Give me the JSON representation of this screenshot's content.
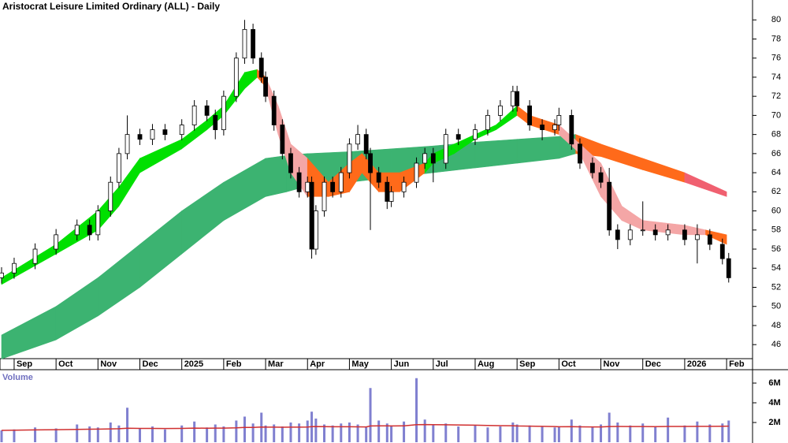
{
  "chart_data": {
    "type": "candlestick",
    "title": "Aristocrat Leisure Limited Ordinary (ALL) - Daily",
    "xlim": [
      -0.3,
      17.6
    ],
    "xticks": [
      {
        "value": 0,
        "label": "Sep"
      },
      {
        "value": 1,
        "label": "Oct"
      },
      {
        "value": 2,
        "label": "Nov"
      },
      {
        "value": 3,
        "label": "Dec"
      },
      {
        "value": 4,
        "label": "2025"
      },
      {
        "value": 5,
        "label": "Feb"
      },
      {
        "value": 6,
        "label": "Mar"
      },
      {
        "value": 7,
        "label": "Apr"
      },
      {
        "value": 8,
        "label": "May"
      },
      {
        "value": 9,
        "label": "Jun"
      },
      {
        "value": 10,
        "label": "Jul"
      },
      {
        "value": 11,
        "label": "Aug"
      },
      {
        "value": 12,
        "label": "Sep"
      },
      {
        "value": 13,
        "label": "Oct"
      },
      {
        "value": 14,
        "label": "Nov"
      },
      {
        "value": 15,
        "label": "Dec"
      },
      {
        "value": 16,
        "label": "2026"
      },
      {
        "value": 17,
        "label": "Feb"
      }
    ],
    "ylim": [
      44.2,
      82
    ],
    "yticks": [
      46,
      48,
      50,
      52,
      54,
      56,
      58,
      60,
      62,
      64,
      66,
      68,
      70,
      72,
      74,
      76,
      78,
      80
    ],
    "up_color": "#ffffff",
    "down_color": "#000000",
    "candles": {
      "x": [
        -0.3,
        0,
        0.5,
        1,
        1.5,
        1.8,
        2,
        2.3,
        2.5,
        2.7,
        3,
        3.3,
        3.6,
        4,
        4.3,
        4.6,
        4.8,
        5,
        5.3,
        5.5,
        5.7,
        5.9,
        6,
        6.2,
        6.4,
        6.6,
        6.8,
        7,
        7.1,
        7.2,
        7.4,
        7.6,
        7.8,
        8,
        8.2,
        8.4,
        8.5,
        8.7,
        8.9,
        9,
        9.3,
        9.6,
        9.8,
        10,
        10.3,
        10.6,
        11,
        11.3,
        11.6,
        11.9,
        12,
        12.3,
        12.6,
        12.9,
        13,
        13.3,
        13.5,
        13.8,
        14,
        14.2,
        14.4,
        14.7,
        15,
        15.3,
        15.6,
        16,
        16.3,
        16.6,
        16.9,
        17.05
      ],
      "open": [
        53,
        53.5,
        54.5,
        56,
        57.5,
        58.5,
        57.5,
        60,
        63,
        66,
        68,
        67.5,
        68.5,
        68,
        69,
        71,
        70,
        68.5,
        72,
        76,
        79,
        76,
        74,
        72,
        69,
        66,
        64,
        62,
        63,
        56,
        60,
        63,
        62,
        64,
        67,
        68,
        66,
        64,
        63,
        61,
        62,
        63,
        65,
        66,
        65,
        68,
        67.5,
        68.5,
        70,
        71,
        72.5,
        71,
        69,
        68.5,
        69,
        70,
        67,
        65,
        64,
        63,
        58,
        57,
        58,
        58,
        57.5,
        58,
        57,
        57.5,
        56.5,
        55
      ],
      "high": [
        54.1,
        55.1,
        56.6,
        58.1,
        59.1,
        59.1,
        60.6,
        63.6,
        66.6,
        70,
        68.6,
        69.1,
        69.1,
        69.6,
        71.6,
        71.6,
        70.6,
        72.6,
        76.6,
        80,
        79.6,
        76.6,
        74.6,
        72.6,
        69.6,
        66.6,
        64.6,
        63.6,
        63.6,
        60.6,
        63.6,
        63.6,
        64.6,
        67.6,
        69,
        68.6,
        66.6,
        64.6,
        63.6,
        62.6,
        63.6,
        65.6,
        66.6,
        66.6,
        68.6,
        68.6,
        69.1,
        70.6,
        71.6,
        73.1,
        73.1,
        71.6,
        69.6,
        69.6,
        70.8,
        70.6,
        67.6,
        65.6,
        64.6,
        64.5,
        58.6,
        58.6,
        61,
        58.6,
        58.6,
        58.6,
        58.6,
        58.1,
        57.1,
        55.6
      ],
      "low": [
        52.4,
        52.9,
        53.9,
        55.4,
        56.9,
        56.9,
        56.9,
        59.4,
        62.4,
        65.4,
        66.9,
        66.9,
        67.4,
        67.4,
        68.4,
        69.4,
        67.5,
        67.9,
        71.4,
        75.4,
        75.4,
        73.4,
        71.4,
        68.4,
        65.4,
        63.4,
        61.4,
        61.4,
        55,
        55.4,
        59.4,
        61.4,
        61.4,
        63.4,
        66.4,
        65.4,
        58,
        62.4,
        60.2,
        60.4,
        61.4,
        62.4,
        64.4,
        63,
        64.4,
        66.9,
        66.9,
        67.9,
        69.4,
        70.4,
        70.4,
        68.4,
        67.4,
        67.9,
        68.4,
        66.4,
        64.4,
        63.4,
        62.4,
        57.4,
        56,
        56.4,
        57.4,
        56.9,
        56.9,
        56.4,
        54.5,
        55.9,
        54.4,
        52.5
      ],
      "close": [
        53.5,
        54.5,
        56,
        57.5,
        58.5,
        57.5,
        60,
        63,
        66,
        68,
        67.5,
        68.5,
        68,
        69,
        71,
        70,
        68.5,
        72,
        76,
        79,
        76,
        74,
        72,
        69,
        66,
        64,
        62,
        63,
        56,
        60,
        63,
        62,
        64,
        67,
        68,
        66,
        64,
        63,
        61,
        62,
        63,
        65,
        66,
        65,
        68,
        67.5,
        68.5,
        70,
        71,
        72.5,
        71,
        69,
        68.5,
        69,
        70,
        67,
        65,
        64,
        63,
        58,
        57,
        58,
        58,
        57.5,
        58,
        57,
        57.5,
        56.5,
        55,
        53
      ]
    },
    "ribbons": [
      {
        "x": [
          -0.3,
          1,
          2,
          3,
          4,
          5,
          6,
          6.5,
          7,
          8,
          9,
          10,
          11,
          12,
          13,
          13.4,
          14,
          15,
          16,
          17
        ],
        "upper": [
          47,
          50,
          53,
          56.5,
          60,
          63,
          65.5,
          65.8,
          66,
          66.2,
          66.5,
          66.8,
          67.2,
          67.5,
          67.8,
          68,
          67,
          65.5,
          64,
          62
        ],
        "lower": [
          44.5,
          46.5,
          49,
          52,
          55.5,
          59,
          61.5,
          62,
          62.6,
          63,
          63.5,
          64,
          64.5,
          65,
          65.5,
          66,
          65.7,
          64.3,
          63,
          61.5
        ],
        "segment_colors": [
          "#3cb371",
          "#3cb371",
          "#3cb371",
          "#3cb371",
          "#3cb371",
          "#3cb371",
          "#3cb371",
          "#3cb371",
          "#3cb371",
          "#3cb371",
          "#3cb371",
          "#3cb371",
          "#3cb371",
          "#3cb371",
          "#3cb371",
          "#ff6a1a",
          "#ff6a1a",
          "#ff6a1a",
          "#f06070"
        ]
      },
      {
        "x": [
          -0.3,
          1,
          2,
          2.5,
          3,
          4,
          4.6,
          5,
          5.5,
          5.8,
          6,
          6.3,
          6.6,
          7,
          7.5,
          8,
          8.3,
          8.7,
          9.2,
          9.8,
          10,
          10.5,
          11,
          11.5,
          12,
          12.3,
          13,
          13.5,
          14,
          14.5,
          15,
          16,
          16.5,
          17
        ],
        "upper": [
          53,
          56.5,
          60,
          62.5,
          65.5,
          67.5,
          69.5,
          71,
          74.5,
          74.8,
          74,
          71,
          67,
          65.5,
          63,
          65,
          66,
          64,
          64,
          65,
          66,
          67,
          68,
          69,
          71,
          70,
          69,
          67,
          65,
          60.5,
          59,
          58.5,
          58,
          57.5
        ],
        "lower": [
          52.3,
          55.5,
          58,
          60.5,
          64,
          66.5,
          68.5,
          70,
          72.8,
          74,
          73,
          68,
          64,
          61.5,
          61.5,
          62,
          64,
          62,
          62,
          64,
          65,
          66,
          67.5,
          68.5,
          70,
          69,
          68,
          66,
          61.5,
          59,
          58,
          57.5,
          57.5,
          56.5
        ],
        "segment_colors": [
          "#00e000",
          "#00e000",
          "#00e000",
          "#00e000",
          "#00e000",
          "#00e000",
          "#00e000",
          "#00e000",
          "#00e000",
          "#ff6a1a",
          "#f4a6a6",
          "#f4a6a6",
          "#f4a6a6",
          "#ff6a1a",
          "#ff6a1a",
          "#ff6a1a",
          "#ff6a1a",
          "#ff6a1a",
          "#ff6a1a",
          "#00e000",
          "#00e000",
          "#00e000",
          "#00e000",
          "#00e000",
          "#ff6a1a",
          "#ff6a1a",
          "#f4a6a6",
          "#f4a6a6",
          "#f4a6a6",
          "#f4a6a6",
          "#f4a6a6",
          "#f4a6a6",
          "#ff6a1a"
        ]
      }
    ],
    "volume": {
      "label": "Volume",
      "ylim": [
        0,
        7000000
      ],
      "yticks": [
        {
          "value": 2000000,
          "label": "2M"
        },
        {
          "value": 4000000,
          "label": "4M"
        },
        {
          "value": 6000000,
          "label": "6M"
        }
      ],
      "color": "#8080d0",
      "ma_color": "#d03030",
      "values": [
        1200000,
        1300000,
        1500000,
        1400000,
        1800000,
        1600000,
        1500000,
        2000000,
        1700000,
        3500000,
        1400000,
        1600000,
        1300000,
        1700000,
        2100000,
        1500000,
        1800000,
        1600000,
        2200000,
        2600000,
        1900000,
        3000000,
        1700000,
        1800000,
        1600000,
        2000000,
        1900000,
        2200000,
        3100000,
        2400000,
        1800000,
        1700000,
        1900000,
        2000000,
        1800000,
        1600000,
        5500000,
        2200000,
        1900000,
        1700000,
        2100000,
        6500000,
        2300000,
        1800000,
        1900000,
        1600000,
        1700000,
        1500000,
        1600000,
        2000000,
        1800000,
        1700000,
        1600000,
        1500000,
        1600000,
        2300000,
        1700000,
        1600000,
        1800000,
        3000000,
        2000000,
        1700000,
        1900000,
        1600000,
        2500000,
        1700000,
        2100000,
        1800000,
        1900000,
        2200000
      ],
      "ma": [
        1200000,
        1220000,
        1250000,
        1270000,
        1300000,
        1320000,
        1330000,
        1350000,
        1370000,
        1420000,
        1400000,
        1400000,
        1390000,
        1400000,
        1430000,
        1420000,
        1430000,
        1430000,
        1460000,
        1500000,
        1500000,
        1540000,
        1530000,
        1530000,
        1520000,
        1530000,
        1530000,
        1540000,
        1580000,
        1590000,
        1580000,
        1570000,
        1570000,
        1570000,
        1560000,
        1550000,
        1650000,
        1660000,
        1660000,
        1650000,
        1660000,
        1780000,
        1790000,
        1780000,
        1770000,
        1750000,
        1730000,
        1700000,
        1680000,
        1670000,
        1650000,
        1630000,
        1610000,
        1590000,
        1570000,
        1580000,
        1560000,
        1550000,
        1550000,
        1590000,
        1600000,
        1590000,
        1590000,
        1580000,
        1600000,
        1600000,
        1610000,
        1610000,
        1620000,
        1630000
      ]
    }
  }
}
